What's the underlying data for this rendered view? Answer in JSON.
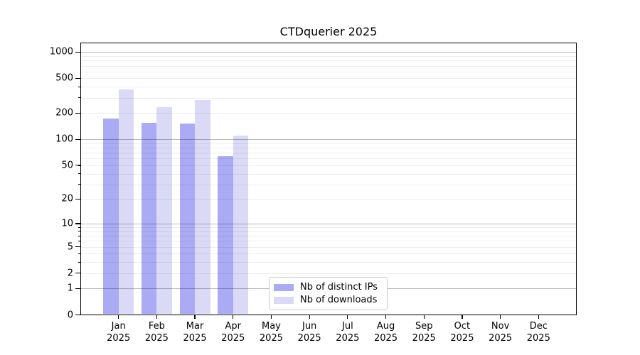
{
  "title": "CTDquerier 2025",
  "legend": {
    "items": [
      {
        "label": "Nb of distinct IPs",
        "color": "#aaaaf5"
      },
      {
        "label": "Nb of downloads",
        "color": "#dadaf7"
      }
    ]
  },
  "axes": {
    "y_ticks": [
      {
        "value": 0,
        "label": "0"
      },
      {
        "value": 1,
        "label": "1"
      },
      {
        "value": 2,
        "label": "2"
      },
      {
        "value": 5,
        "label": "5"
      },
      {
        "value": 10,
        "label": "10"
      },
      {
        "value": 20,
        "label": "20"
      },
      {
        "value": 50,
        "label": "50"
      },
      {
        "value": 100,
        "label": "100"
      },
      {
        "value": 200,
        "label": "200"
      },
      {
        "value": 500,
        "label": "500"
      },
      {
        "value": 1000,
        "label": "1000"
      }
    ],
    "x_ticks": [
      {
        "month": "Jan",
        "year": "2025"
      },
      {
        "month": "Feb",
        "year": "2025"
      },
      {
        "month": "Mar",
        "year": "2025"
      },
      {
        "month": "Apr",
        "year": "2025"
      },
      {
        "month": "May",
        "year": "2025"
      },
      {
        "month": "Jun",
        "year": "2025"
      },
      {
        "month": "Jul",
        "year": "2025"
      },
      {
        "month": "Aug",
        "year": "2025"
      },
      {
        "month": "Sep",
        "year": "2025"
      },
      {
        "month": "Oct",
        "year": "2025"
      },
      {
        "month": "Nov",
        "year": "2025"
      },
      {
        "month": "Dec",
        "year": "2025"
      }
    ]
  },
  "chart_data": {
    "type": "bar",
    "title": "CTDquerier 2025",
    "categories": [
      "Jan 2025",
      "Feb 2025",
      "Mar 2025",
      "Apr 2025",
      "May 2025",
      "Jun 2025",
      "Jul 2025",
      "Aug 2025",
      "Sep 2025",
      "Oct 2025",
      "Nov 2025",
      "Dec 2025"
    ],
    "series": [
      {
        "name": "Nb of distinct IPs",
        "color": "#aaaaf5",
        "values": [
          173,
          154,
          151,
          64,
          null,
          null,
          null,
          null,
          null,
          null,
          null,
          null
        ]
      },
      {
        "name": "Nb of downloads",
        "color": "#dadaf7",
        "values": [
          375,
          235,
          282,
          111,
          null,
          null,
          null,
          null,
          null,
          null,
          null,
          null
        ]
      }
    ],
    "xlabel": "",
    "ylabel": "",
    "yscale": "log(1+x)",
    "ytick_values": [
      0,
      1,
      2,
      5,
      10,
      20,
      50,
      100,
      200,
      500,
      1000
    ],
    "ylim": [
      0,
      1273
    ],
    "grid": "on",
    "legend_position": "lower-center"
  }
}
